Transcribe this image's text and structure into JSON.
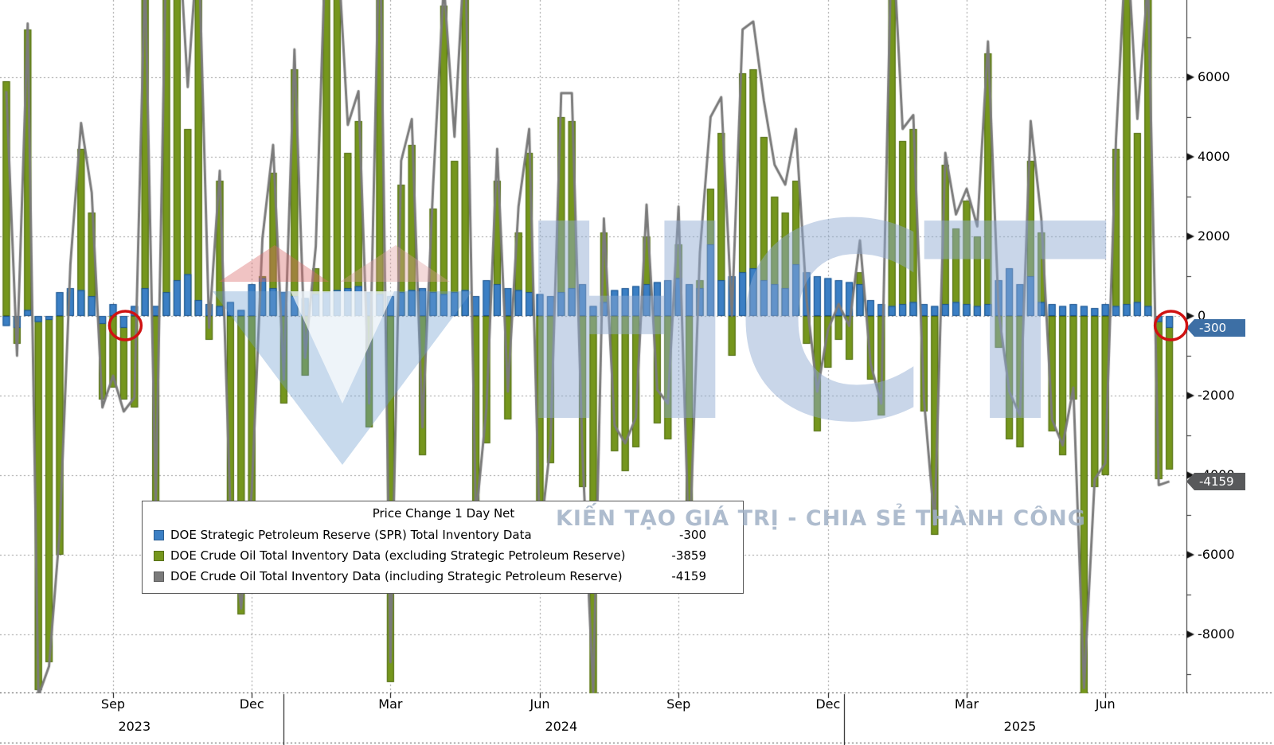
{
  "chart_data": {
    "type": "bar",
    "title": "Price Change 1 Day Net",
    "values_estimated": true,
    "ylim": [
      -9460,
      7940
    ],
    "y_ticks": [
      6000,
      4000,
      2000,
      0,
      -2000,
      -4000,
      -6000,
      -8000
    ],
    "x_ticks": [
      {
        "index": 10,
        "label": "Sep"
      },
      {
        "index": 23,
        "label": "Dec"
      },
      {
        "index": 36,
        "label": "Mar"
      },
      {
        "index": 50,
        "label": "Jun"
      },
      {
        "index": 63,
        "label": "Sep"
      },
      {
        "index": 77,
        "label": "Dec"
      },
      {
        "index": 90,
        "label": "Mar"
      },
      {
        "index": 103,
        "label": "Jun"
      }
    ],
    "year_labels": [
      {
        "index": 12,
        "label": "2023"
      },
      {
        "index": 52,
        "label": "2024"
      },
      {
        "index": 95,
        "label": "2025"
      }
    ],
    "year_separator_indices": [
      26,
      78.5
    ],
    "annotated_points": [
      {
        "index": 11,
        "note": "red circle on small negative SPR bar near Sep 2023"
      },
      {
        "index": 109,
        "note": "red circle on latest SPR bar (-300)"
      }
    ],
    "axis_badges": {
      "spr": {
        "text": "-300",
        "color": "#3d6fa5"
      },
      "total": {
        "text": "-4159",
        "color": "#58595b"
      }
    },
    "series": [
      {
        "name": "DOE Strategic Petroleum Reserve (SPR) Total Inventory Data",
        "type": "bar",
        "color": "#3b7fc4",
        "edge": "#17508c",
        "last_value": -300,
        "values": [
          -250,
          -300,
          150,
          -150,
          -100,
          600,
          700,
          650,
          500,
          -200,
          300,
          -300,
          250,
          700,
          250,
          600,
          900,
          1050,
          400,
          300,
          250,
          350,
          150,
          800,
          950,
          700,
          600,
          500,
          450,
          550,
          600,
          650,
          700,
          750,
          600,
          550,
          500,
          600,
          650,
          700,
          600,
          550,
          600,
          650,
          500,
          900,
          800,
          700,
          650,
          600,
          550,
          500,
          600,
          700,
          800,
          250,
          350,
          650,
          700,
          750,
          800,
          850,
          900,
          950,
          800,
          700,
          1800,
          900,
          1000,
          1100,
          1200,
          900,
          800,
          700,
          1300,
          1100,
          1000,
          950,
          900,
          850,
          800,
          400,
          300,
          250,
          300,
          350,
          300,
          250,
          300,
          350,
          300,
          250,
          300,
          900,
          1200,
          800,
          1000,
          350,
          300,
          250,
          300,
          250,
          200,
          300,
          250,
          300,
          350,
          250,
          -150,
          -300
        ]
      },
      {
        "name": "DOE Crude Oil Total Inventory Data (excluding Strategic Petroleum Reserve)",
        "type": "bar",
        "color": "#75961d",
        "edge": "#4e690f",
        "last_value": -3859,
        "values": [
          5900,
          -700,
          7200,
          -9400,
          -8700,
          -6000,
          600,
          4200,
          2600,
          -2100,
          -1800,
          -2100,
          -2300,
          8000,
          -5000,
          9000,
          9500,
          4700,
          9200,
          -600,
          3400,
          -5300,
          -7500,
          -5200,
          1000,
          3600,
          -2200,
          6200,
          -1500,
          1200,
          9400,
          8900,
          4100,
          4900,
          -2800,
          9600,
          -9200,
          3300,
          4300,
          -3500,
          2700,
          7800,
          3900,
          8800,
          -5600,
          -3200,
          3400,
          -2600,
          2100,
          4100,
          -6200,
          -3700,
          5000,
          4900,
          -4300,
          -9700,
          2100,
          -3400,
          -3900,
          -3300,
          2000,
          -2700,
          -3100,
          1800,
          -6800,
          900,
          3200,
          4600,
          -1000,
          6100,
          6200,
          4500,
          3000,
          2600,
          3400,
          -700,
          -2900,
          -1300,
          -600,
          -1100,
          1100,
          -1600,
          -2500,
          9700,
          4400,
          4700,
          -2400,
          -5500,
          3800,
          2200,
          2900,
          2000,
          6600,
          -800,
          -3100,
          -3300,
          3900,
          2100,
          -2900,
          -3500,
          -2100,
          -9600,
          -4300,
          -4000,
          4200,
          9300,
          4600,
          8200,
          -4100,
          -3859
        ]
      },
      {
        "name": "DOE Crude Oil Total Inventory Data (including Strategic Petroleum Reserve)",
        "type": "line",
        "color": "#7a7a7a",
        "last_value": -4159,
        "derived_from": "sum of SPR series and excluding-SPR series"
      }
    ]
  },
  "watermark": {
    "logo": "hct-diamond-logo",
    "text": "HCT",
    "slogan": "KIẾN TẠO GIÁ TRỊ - CHIA SẺ THÀNH CÔNG"
  }
}
